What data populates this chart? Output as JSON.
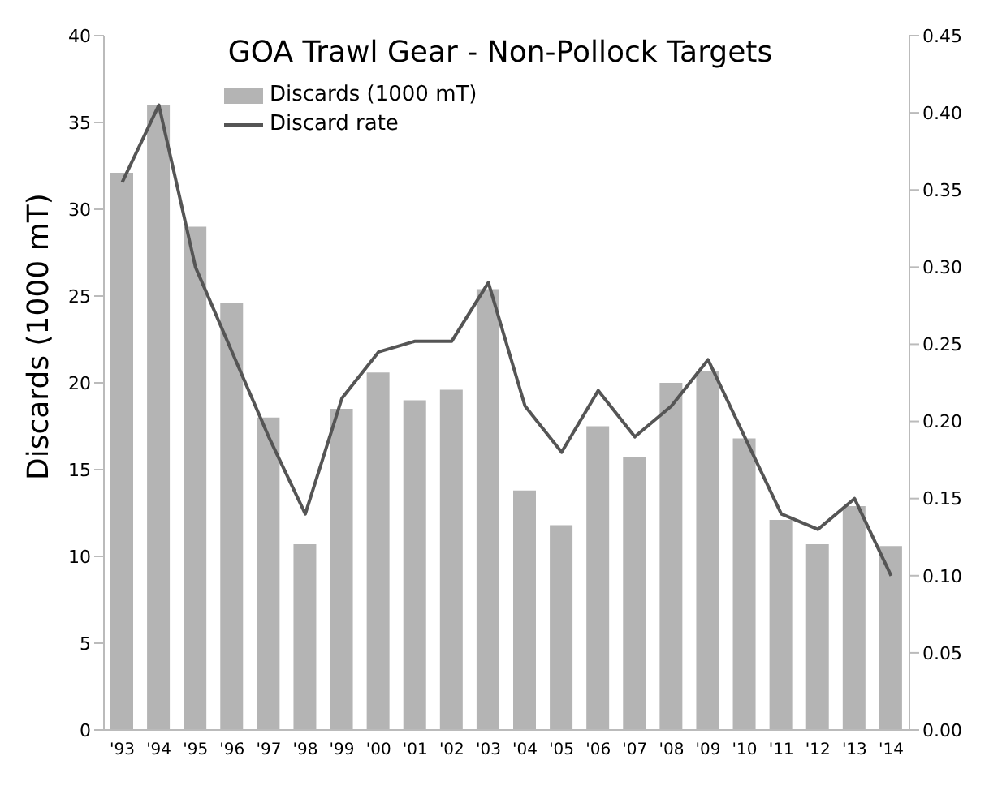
{
  "chart_data": {
    "type": "bar",
    "title": "GOA Trawl Gear - Non-Pollock Targets",
    "ylabel": "Discards (1000 mT)",
    "categories": [
      "'93",
      "'94",
      "'95",
      "'96",
      "'97",
      "'98",
      "'99",
      "'00",
      "'01",
      "'02",
      "'03",
      "'04",
      "'05",
      "'06",
      "'07",
      "'08",
      "'09",
      "'10",
      "'11",
      "'12",
      "'13",
      "'14"
    ],
    "series": [
      {
        "name": "Discards (1000 mT)",
        "color": "#b4b4b4",
        "values": [
          32.1,
          36,
          29,
          24.6,
          18,
          10.7,
          18.5,
          20.6,
          19,
          19.6,
          25.4,
          13.8,
          11.8,
          17.5,
          15.7,
          20,
          20.7,
          16.8,
          12.1,
          10.7,
          12.9,
          10.6
        ]
      },
      {
        "name": "Discard rate",
        "type": "line",
        "axis": "y2",
        "color": "#555555",
        "values": [
          0.355,
          0.405,
          0.3,
          0.245,
          0.19,
          0.14,
          0.215,
          0.245,
          0.252,
          0.252,
          0.29,
          0.21,
          0.18,
          0.22,
          0.19,
          0.21,
          0.24,
          0.19,
          0.14,
          0.13,
          0.15,
          0.1
        ]
      }
    ],
    "ylim": [
      0,
      40
    ],
    "yticks": [
      0,
      5,
      10,
      15,
      20,
      25,
      30,
      35,
      40
    ],
    "y2lim": [
      0,
      0.45
    ],
    "y2ticks": [
      {
        "value": 0,
        "label": "0.00"
      },
      {
        "value": 0.05,
        "label": "0.05"
      },
      {
        "value": 0.1,
        "label": "0.10"
      },
      {
        "value": 0.15,
        "label": "0.15"
      },
      {
        "value": 0.2,
        "label": "0.20"
      },
      {
        "value": 0.25,
        "label": "0.25"
      },
      {
        "value": 0.3,
        "label": "0.30"
      },
      {
        "value": 0.35,
        "label": "0.35"
      },
      {
        "value": 0.4,
        "label": "0.40"
      },
      {
        "value": 0.45,
        "label": "0.45"
      }
    ],
    "legend": "top left",
    "grid": false,
    "marker": "none",
    "line_style": "solid"
  }
}
